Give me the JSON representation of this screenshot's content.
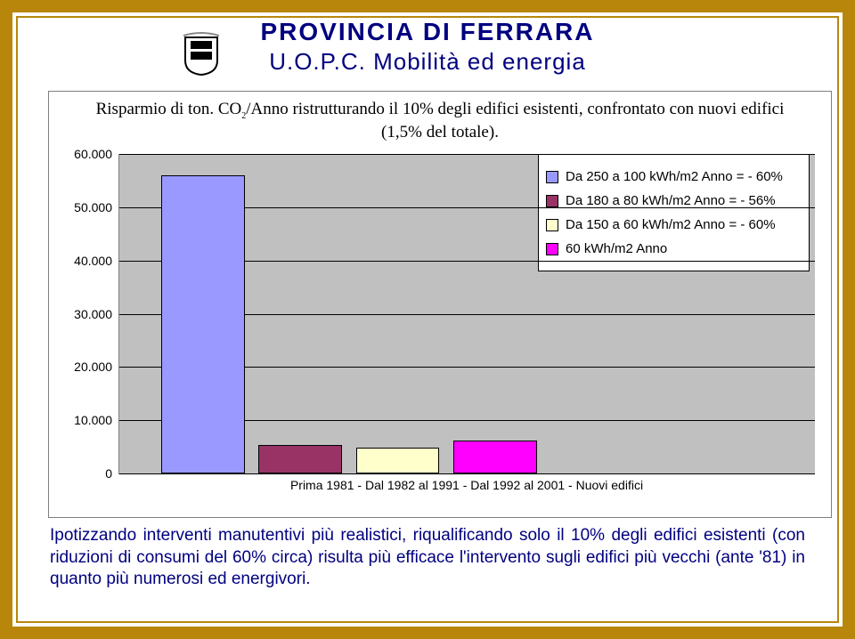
{
  "header": {
    "title1": "PROVINCIA  DI  FERRARA",
    "title2": "U.O.P.C. Mobilità ed energia"
  },
  "panel": {
    "title_pre": "Risparmio di ton. CO",
    "title_sub": "2",
    "title_post": "/Anno ristrutturando il 10% degli edifici esistenti, confrontato con nuovi edifici (1,5% del totale)."
  },
  "chart": {
    "type": "bar",
    "background_color": "#c0c0c0",
    "grid_color": "#000000",
    "ylim": [
      0,
      60000
    ],
    "ytick_step": 10000,
    "yticks": [
      "0",
      "10.000",
      "20.000",
      "30.000",
      "40.000",
      "50.000",
      "60.000"
    ],
    "x_caption": "Prima 1981 - Dal 1982 al 1991 - Dal 1992 al 2001 - Nuovi edifici",
    "bar_width_pct": 12,
    "bars": [
      {
        "left_pct": 6,
        "value": 56000,
        "color": "#9999ff"
      },
      {
        "left_pct": 20,
        "value": 5400,
        "color": "#993366"
      },
      {
        "left_pct": 34,
        "value": 4800,
        "color": "#ffffcc"
      },
      {
        "left_pct": 48,
        "value": 6200,
        "color": "#ff00ff"
      }
    ],
    "legend": [
      {
        "color": "#9999ff",
        "label": "Da 250 a 100 kWh/m2 Anno = - 60%"
      },
      {
        "color": "#993366",
        "label": "Da 180 a 80 kWh/m2 Anno = - 56%"
      },
      {
        "color": "#ffffcc",
        "label": "Da 150 a 60 kWh/m2 Anno = - 60%"
      },
      {
        "color": "#ff00ff",
        "label": "60 kWh/m2 Anno"
      }
    ]
  },
  "footer": {
    "text": "Ipotizzando interventi manutentivi più realistici, riqualificando solo il 10% degli edifici esistenti (con riduzioni di consumi del 60% circa) risulta più efficace l'intervento sugli edifici più vecchi (ante '81) in quanto più numerosi ed energivori."
  }
}
